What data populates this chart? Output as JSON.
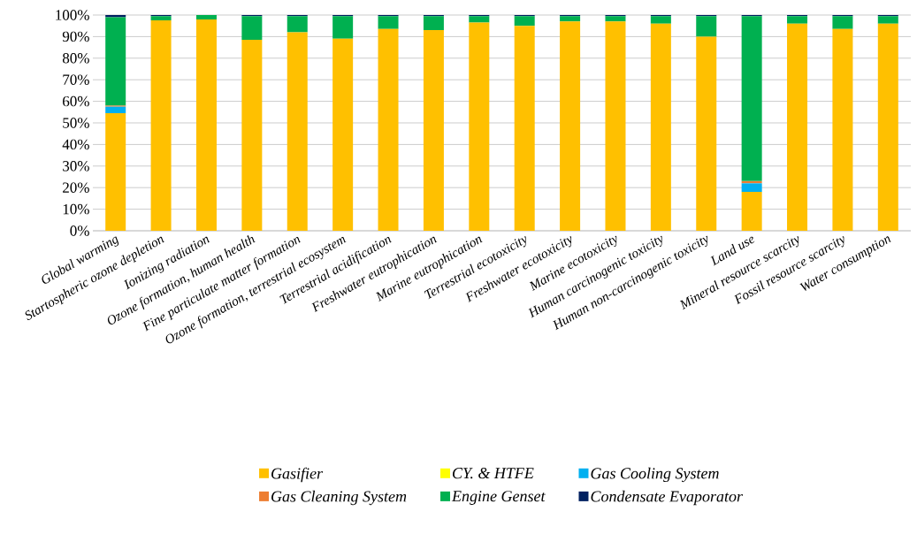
{
  "chart_data": {
    "type": "bar",
    "stacked": true,
    "categories": [
      "Global warming",
      "Startospheric ozone depletion",
      "Ionizing radiation",
      "Ozone formation, human health",
      "Fine particulate matter formation",
      "Ozone formation, terrestrial ecosystem",
      "Terrestrial acidification",
      "Freshwater eutrophication",
      "Marine eutrophication",
      "Terrestrial ecotoxicity",
      "Freshwater ecotoxicity",
      "Marine ecotoxicity",
      "Human carcinogenic toxicity",
      "Human non-carcinogenic toxicity",
      "Land use",
      "Mineral resource scarcity",
      "Fossil resource scarcity",
      "Water consumption"
    ],
    "series": [
      {
        "name": "Gasifier",
        "color": "#ffc000",
        "values": [
          54.5,
          97.5,
          98,
          88.5,
          92,
          89,
          93.5,
          93,
          96.5,
          95,
          97,
          97,
          96,
          90,
          18,
          96,
          93.5,
          96
        ]
      },
      {
        "name": "CY. & HTFE",
        "color": "#ffff00",
        "values": [
          0,
          0,
          0,
          0,
          0,
          0,
          0,
          0,
          0,
          0,
          0,
          0,
          0,
          0,
          0,
          0,
          0,
          0
        ]
      },
      {
        "name": "Gas Cooling System",
        "color": "#00b0f0",
        "values": [
          3,
          0,
          0,
          0,
          0,
          0,
          0,
          0,
          0,
          0,
          0,
          0,
          0,
          0,
          4,
          0,
          0,
          0
        ]
      },
      {
        "name": "Gas Cleaning System",
        "color": "#ed7d31",
        "values": [
          0.5,
          0,
          0,
          0,
          0,
          0,
          0,
          0,
          0,
          0,
          0,
          0,
          0,
          0,
          1,
          0,
          0,
          0
        ]
      },
      {
        "name": "Engine Genset",
        "color": "#00b050",
        "values": [
          41,
          2,
          2,
          11,
          7.5,
          10.5,
          6,
          6.5,
          3,
          4.5,
          2.5,
          2.5,
          3.5,
          9.5,
          76.5,
          3.5,
          6,
          3.5
        ]
      },
      {
        "name": "Condensate Evaporator",
        "color": "#002060",
        "values": [
          1,
          0.5,
          0,
          0.5,
          0.5,
          0.5,
          0.5,
          0.5,
          0.5,
          0.5,
          0.5,
          0.5,
          0.5,
          0.5,
          0.5,
          0.5,
          0.5,
          0.5
        ]
      }
    ],
    "ylim": [
      0,
      100
    ],
    "yticks": [
      {
        "value": 0,
        "label": "0%"
      },
      {
        "value": 10,
        "label": "10%"
      },
      {
        "value": 20,
        "label": "20%"
      },
      {
        "value": 30,
        "label": "30%"
      },
      {
        "value": 40,
        "label": "40%"
      },
      {
        "value": 50,
        "label": "50%"
      },
      {
        "value": 60,
        "label": "60%"
      },
      {
        "value": 70,
        "label": "70%"
      },
      {
        "value": 80,
        "label": "80%"
      },
      {
        "value": 90,
        "label": "90%"
      },
      {
        "value": 100,
        "label": "100%"
      }
    ],
    "grid": "y",
    "legend": "bottom"
  }
}
